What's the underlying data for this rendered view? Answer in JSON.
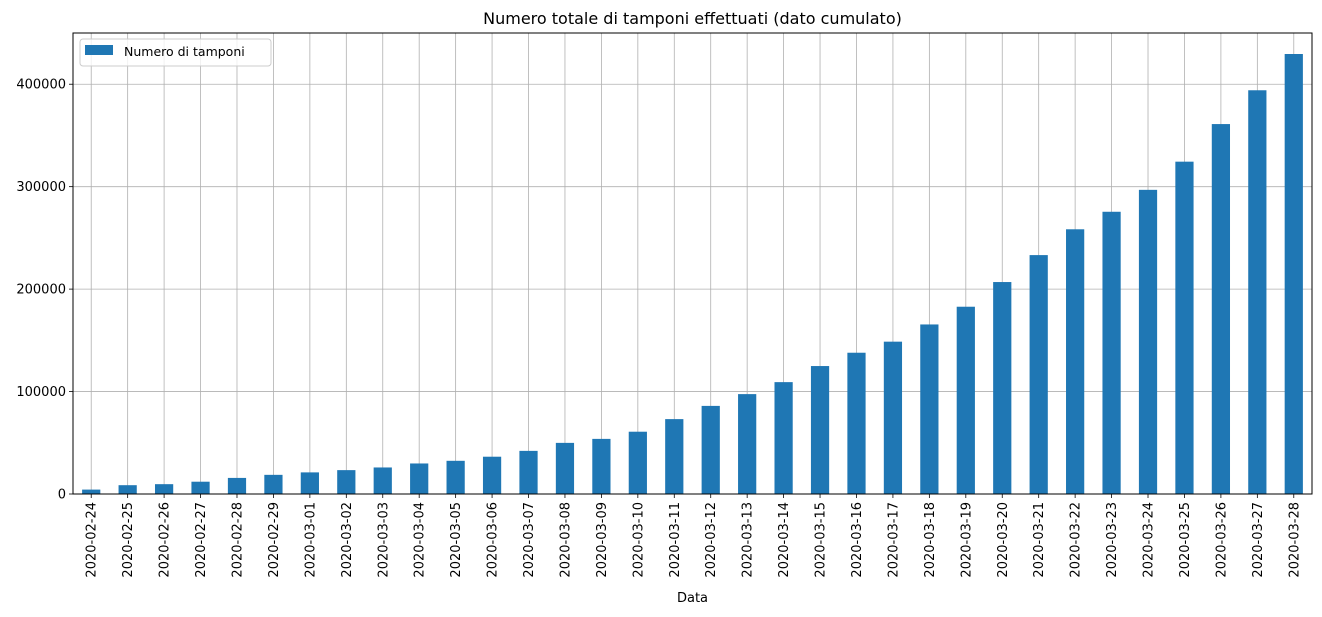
{
  "chart_data": {
    "type": "bar",
    "title": "Numero totale di tamponi effettuati (dato cumulato)",
    "xlabel": "Data",
    "ylabel": "",
    "ylim": [
      0,
      450000
    ],
    "yticks": [
      0,
      100000,
      200000,
      300000,
      400000
    ],
    "ytick_labels": [
      "0",
      "100000",
      "200000",
      "300000",
      "400000"
    ],
    "grid": true,
    "legend_position": "top-left",
    "bar_color": "#1f77b4",
    "categories": [
      "2020-02-24",
      "2020-02-25",
      "2020-02-26",
      "2020-02-27",
      "2020-02-28",
      "2020-02-29",
      "2020-03-01",
      "2020-03-02",
      "2020-03-03",
      "2020-03-04",
      "2020-03-05",
      "2020-03-06",
      "2020-03-07",
      "2020-03-08",
      "2020-03-09",
      "2020-03-10",
      "2020-03-11",
      "2020-03-12",
      "2020-03-13",
      "2020-03-14",
      "2020-03-15",
      "2020-03-16",
      "2020-03-17",
      "2020-03-18",
      "2020-03-19",
      "2020-03-20",
      "2020-03-21",
      "2020-03-22",
      "2020-03-23",
      "2020-03-24",
      "2020-03-25",
      "2020-03-26",
      "2020-03-27",
      "2020-03-28"
    ],
    "series": [
      {
        "name": "Numero di tamponi",
        "values": [
          4300,
          8600,
          9600,
          12000,
          15700,
          18700,
          21100,
          23300,
          25900,
          29800,
          32400,
          36400,
          42100,
          49900,
          53800,
          60800,
          73100,
          86000,
          97500,
          109200,
          124900,
          137900,
          148700,
          165500,
          182800,
          206900,
          233200,
          258400,
          275500,
          296900,
          324400,
          361100,
          394100,
          429500
        ]
      }
    ]
  }
}
